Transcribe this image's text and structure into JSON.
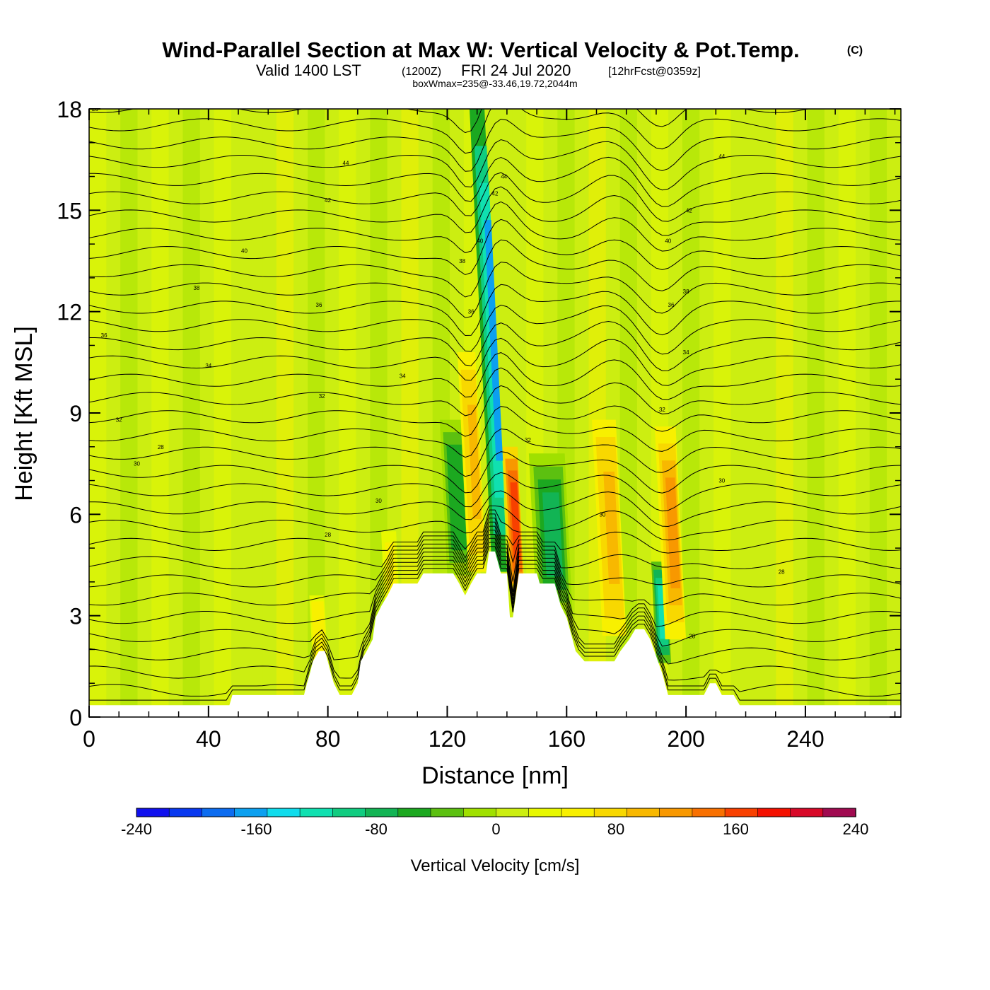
{
  "header": {
    "title": "Wind-Parallel Section at Max W: Vertical Velocity & Pot.Temp.",
    "copyright": "(C)",
    "valid_prefix": "Valid 1400 LST",
    "valid_utc": "(1200Z)",
    "valid_date": "FRI 24 Jul 2020",
    "forecast_info": "[12hrFcst@0359z]",
    "box_info": "boxWmax=235@-33.46,19.72,2044m"
  },
  "colors": {
    "terrain": "#ffffff",
    "contour": "#000000",
    "background_field": "#ccee11"
  },
  "chart_data": {
    "type": "heatmap",
    "title": "Wind-Parallel Section at Max W: Vertical Velocity & Pot.Temp.",
    "xlabel": "Distance [nm]",
    "ylabel": "Height [Kft MSL]",
    "xlim": [
      0,
      272
    ],
    "ylim": [
      0,
      18
    ],
    "x_ticks": [
      0,
      40,
      80,
      120,
      160,
      200,
      240
    ],
    "y_ticks": [
      0,
      3,
      6,
      9,
      12,
      15,
      18
    ],
    "colorbar": {
      "label": "Vertical Velocity [cm/s]",
      "range": [
        -240,
        240
      ],
      "step": 20,
      "tick_values": [
        -240,
        -160,
        -80,
        0,
        80,
        160,
        240
      ],
      "colors": [
        "#1010ee",
        "#0838f0",
        "#0c6cf0",
        "#0ca0f0",
        "#10dcec",
        "#10e0b0",
        "#10cc80",
        "#12b454",
        "#1ca820",
        "#5cc010",
        "#a0e000",
        "#ccee11",
        "#e8f800",
        "#f8f000",
        "#f8d800",
        "#f8b800",
        "#f89800",
        "#f87000",
        "#f84000",
        "#f41000",
        "#d80828",
        "#a00a50"
      ]
    },
    "terrain_profile": [
      [
        0,
        0.35
      ],
      [
        10,
        0.35
      ],
      [
        20,
        0.35
      ],
      [
        30,
        0.35
      ],
      [
        40,
        0.35
      ],
      [
        47,
        0.35
      ],
      [
        48,
        0.65
      ],
      [
        60,
        0.65
      ],
      [
        70,
        0.65
      ],
      [
        72,
        0.65
      ],
      [
        73,
        1.0
      ],
      [
        74,
        1.3
      ],
      [
        75,
        1.65
      ],
      [
        77,
        1.95
      ],
      [
        79,
        1.95
      ],
      [
        80,
        1.65
      ],
      [
        81,
        1.3
      ],
      [
        82,
        1.0
      ],
      [
        84,
        0.65
      ],
      [
        88,
        0.65
      ],
      [
        90,
        1.0
      ],
      [
        91,
        1.65
      ],
      [
        93,
        1.95
      ],
      [
        95,
        2.3
      ],
      [
        96,
        2.95
      ],
      [
        98,
        3.3
      ],
      [
        100,
        3.6
      ],
      [
        102,
        3.95
      ],
      [
        110,
        3.95
      ],
      [
        112,
        4.25
      ],
      [
        122,
        4.25
      ],
      [
        124,
        3.95
      ],
      [
        126,
        3.6
      ],
      [
        128,
        3.95
      ],
      [
        130,
        4.25
      ],
      [
        133,
        4.25
      ],
      [
        134,
        4.9
      ],
      [
        136,
        4.9
      ],
      [
        138,
        4.25
      ],
      [
        140,
        4.25
      ],
      [
        141,
        2.95
      ],
      [
        142,
        2.95
      ],
      [
        143,
        3.6
      ],
      [
        144,
        4.25
      ],
      [
        150,
        4.25
      ],
      [
        151,
        3.95
      ],
      [
        156,
        3.95
      ],
      [
        158,
        3.3
      ],
      [
        160,
        2.95
      ],
      [
        162,
        2.3
      ],
      [
        163,
        1.95
      ],
      [
        166,
        1.65
      ],
      [
        170,
        1.65
      ],
      [
        176,
        1.65
      ],
      [
        178,
        1.95
      ],
      [
        181,
        2.3
      ],
      [
        183,
        2.6
      ],
      [
        186,
        2.6
      ],
      [
        188,
        2.3
      ],
      [
        192,
        1.3
      ],
      [
        194,
        0.65
      ],
      [
        198,
        0.65
      ],
      [
        206,
        0.65
      ],
      [
        208,
        1.0
      ],
      [
        210,
        1.0
      ],
      [
        212,
        0.65
      ],
      [
        216,
        0.65
      ],
      [
        218,
        0.35
      ],
      [
        240,
        0.35
      ],
      [
        272,
        0.35
      ]
    ],
    "updraft_bands": [
      {
        "x": [
          127,
          133
        ],
        "h": [
          4.3,
          10.8
        ],
        "value": 80
      },
      {
        "x": [
          141,
          146
        ],
        "h": [
          3.6,
          8.0
        ],
        "value": 160
      },
      {
        "x": [
          172,
          180
        ],
        "h": [
          2.4,
          8.8
        ],
        "value": 80
      },
      {
        "x": [
          193,
          200
        ],
        "h": [
          2.3,
          8.6
        ],
        "value": 100
      },
      {
        "x": [
          75,
          80
        ],
        "h": [
          1.4,
          3.6
        ],
        "value": 40
      },
      {
        "x": [
          99,
          104
        ],
        "h": [
          3.4,
          5.5
        ],
        "value": 30
      }
    ],
    "downdraft_bands": [
      {
        "x": [
          135,
          140
        ],
        "h": [
          4.3,
          18.0
        ],
        "value": -200
      },
      {
        "x": [
          190,
          195
        ],
        "h": [
          1.6,
          4.6
        ],
        "value": -160
      },
      {
        "x": [
          120,
          128
        ],
        "h": [
          4.2,
          8.8
        ],
        "value": -90
      },
      {
        "x": [
          150,
          162
        ],
        "h": [
          3.0,
          7.8
        ],
        "value": -100
      }
    ],
    "theta_contours": {
      "start": 26,
      "step": 2,
      "levels": 14
    },
    "contour_labels": [
      "26",
      "28",
      "30",
      "32",
      "34",
      "36",
      "38",
      "40",
      "42",
      "44"
    ]
  }
}
